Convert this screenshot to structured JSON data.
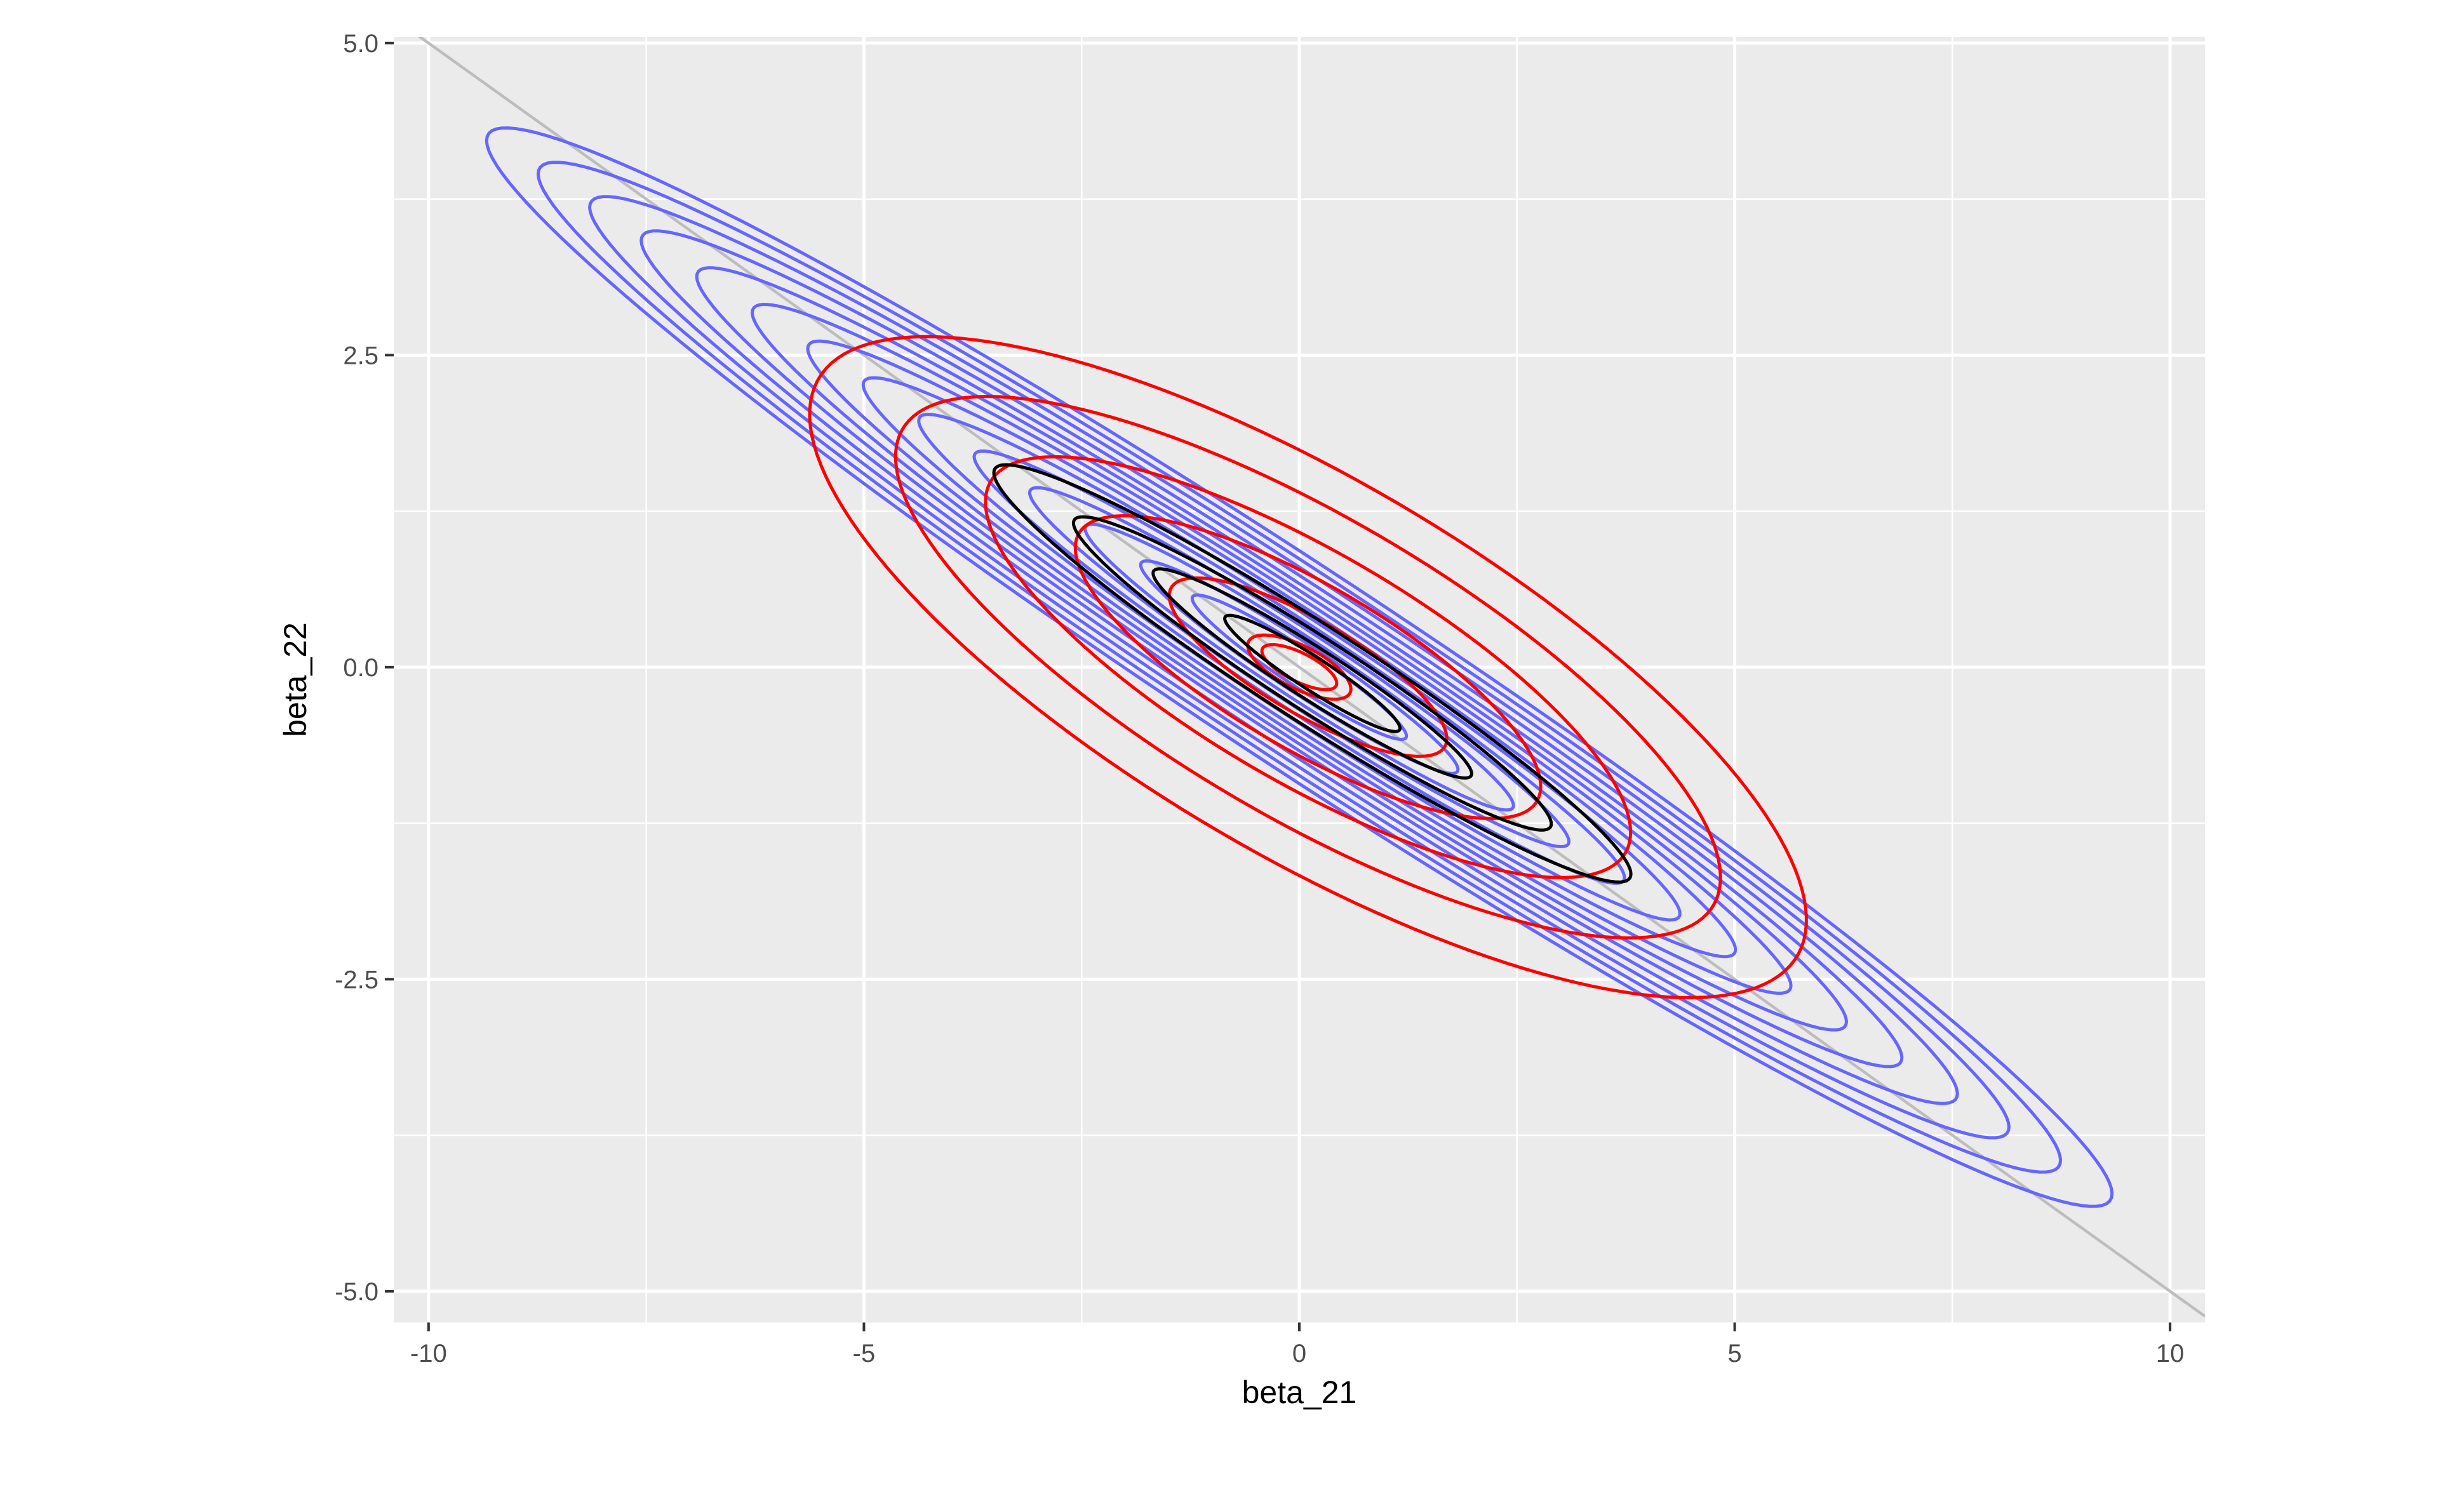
{
  "chart_data": {
    "type": "contour",
    "xlabel": "beta_21",
    "ylabel": "beta_22",
    "xlim": [
      -10.4,
      10.4
    ],
    "ylim": [
      -5.25,
      5.05
    ],
    "x_ticks": [
      {
        "value": -10,
        "label": "-10"
      },
      {
        "value": -5,
        "label": "-5"
      },
      {
        "value": 0,
        "label": "0"
      },
      {
        "value": 5,
        "label": "5"
      },
      {
        "value": 10,
        "label": "10"
      }
    ],
    "y_ticks": [
      {
        "value": -5.0,
        "label": "-5.0"
      },
      {
        "value": -2.5,
        "label": "-2.5"
      },
      {
        "value": 0.0,
        "label": "0.0"
      },
      {
        "value": 2.5,
        "label": "2.5"
      },
      {
        "value": 5.0,
        "label": "5.0"
      }
    ],
    "grid": true,
    "reference_line": {
      "slope": -0.5,
      "intercept": 0,
      "color": "#bdbdbd"
    },
    "series": [
      {
        "color": "#6666ff",
        "center": [
          0,
          0
        ],
        "rotation_deg": -24.5,
        "semi_axes": [
          [
            10.25,
            0.85
          ],
          [
            9.6,
            0.79
          ],
          [
            8.95,
            0.73
          ],
          [
            8.3,
            0.67
          ],
          [
            7.6,
            0.61
          ],
          [
            6.9,
            0.56
          ],
          [
            6.2,
            0.51
          ],
          [
            5.5,
            0.46
          ],
          [
            4.8,
            0.41
          ],
          [
            4.1,
            0.36
          ],
          [
            3.4,
            0.31
          ],
          [
            2.7,
            0.26
          ],
          [
            2.0,
            0.21
          ],
          [
            1.35,
            0.16
          ]
        ]
      },
      {
        "color": "#ff0000",
        "center": [
          0.1,
          0.0
        ],
        "rotation_deg": -21,
        "semi_axes": [
          [
            6.1,
            1.6
          ],
          [
            5.05,
            1.28
          ],
          [
            3.95,
            0.98
          ],
          [
            2.85,
            0.7
          ],
          [
            1.7,
            0.4
          ]
        ]
      },
      {
        "color": "#ff0000",
        "center": [
          0.0,
          0.0
        ],
        "rotation_deg": -18,
        "semi_axes": [
          [
            0.62,
            0.18
          ],
          [
            0.45,
            0.12
          ]
        ]
      },
      {
        "color": "#000000",
        "center": [
          0.15,
          -0.05
        ],
        "rotation_deg": -24,
        "semi_axes": [
          [
            4.0,
            0.42
          ],
          [
            3.0,
            0.32
          ],
          [
            2.0,
            0.22
          ],
          [
            1.1,
            0.14
          ]
        ]
      }
    ]
  }
}
